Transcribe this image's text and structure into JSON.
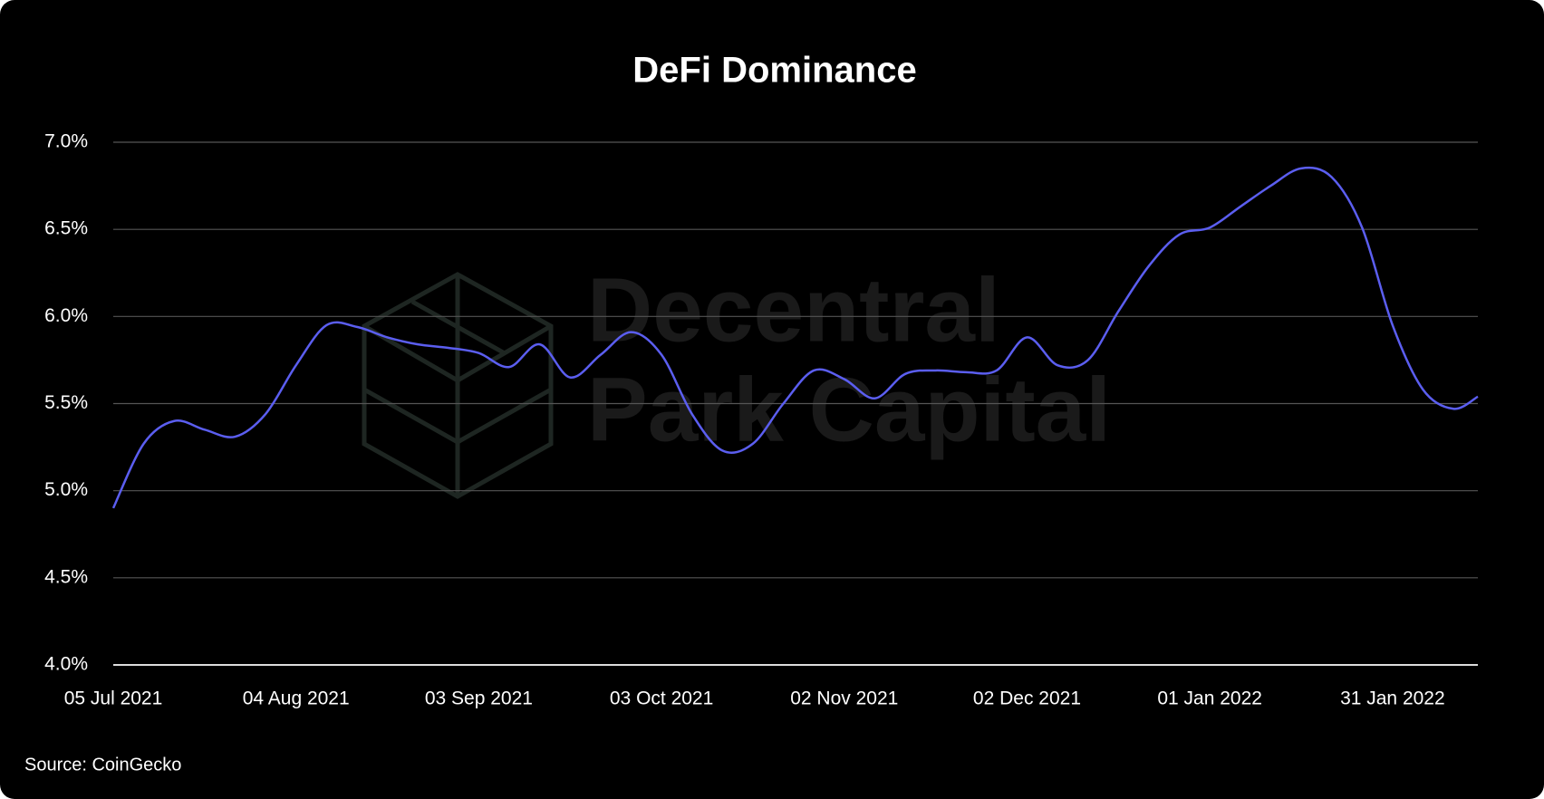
{
  "chart_data": {
    "type": "line",
    "title": "DeFi Dominance",
    "watermark": [
      "Decentral",
      "Park Capital"
    ],
    "source": "Source: CoinGecko",
    "x": [
      "2021-07-05",
      "2021-07-10",
      "2021-07-15",
      "2021-07-20",
      "2021-07-25",
      "2021-07-30",
      "2021-08-04",
      "2021-08-09",
      "2021-08-14",
      "2021-08-19",
      "2021-08-24",
      "2021-08-29",
      "2021-09-03",
      "2021-09-08",
      "2021-09-13",
      "2021-09-18",
      "2021-09-23",
      "2021-09-28",
      "2021-10-03",
      "2021-10-08",
      "2021-10-13",
      "2021-10-18",
      "2021-10-23",
      "2021-10-28",
      "2021-11-02",
      "2021-11-07",
      "2021-11-12",
      "2021-11-17",
      "2021-11-22",
      "2021-11-27",
      "2021-12-02",
      "2021-12-07",
      "2021-12-12",
      "2021-12-17",
      "2021-12-22",
      "2021-12-27",
      "2022-01-01",
      "2022-01-06",
      "2022-01-11",
      "2022-01-16",
      "2022-01-21",
      "2022-01-26",
      "2022-01-31",
      "2022-02-05",
      "2022-02-10",
      "2022-02-14"
    ],
    "series": [
      {
        "name": "DeFi Dominance",
        "color": "#5b5ef0",
        "values": [
          4.9,
          5.27,
          5.4,
          5.35,
          5.31,
          5.44,
          5.72,
          5.95,
          5.94,
          5.88,
          5.84,
          5.82,
          5.79,
          5.71,
          5.84,
          5.65,
          5.78,
          5.91,
          5.78,
          5.44,
          5.23,
          5.27,
          5.5,
          5.69,
          5.64,
          5.53,
          5.67,
          5.69,
          5.68,
          5.69,
          5.88,
          5.72,
          5.75,
          6.03,
          6.29,
          6.47,
          6.51,
          6.63,
          6.75,
          6.85,
          6.8,
          6.51,
          5.95,
          5.58,
          5.47,
          5.54
        ]
      }
    ],
    "xlim": [
      "2021-07-05",
      "2022-02-14"
    ],
    "xticks": [
      {
        "value": "2021-07-05",
        "label": "05 Jul 2021"
      },
      {
        "value": "2021-08-04",
        "label": "04 Aug 2021"
      },
      {
        "value": "2021-09-03",
        "label": "03 Sep 2021"
      },
      {
        "value": "2021-10-03",
        "label": "03 Oct 2021"
      },
      {
        "value": "2021-11-02",
        "label": "02 Nov 2021"
      },
      {
        "value": "2021-12-02",
        "label": "02 Dec 2021"
      },
      {
        "value": "2022-01-01",
        "label": "01 Jan 2022"
      },
      {
        "value": "2022-01-31",
        "label": "31 Jan 2022"
      }
    ],
    "ylim": [
      4.0,
      7.0
    ],
    "yticks": [
      {
        "value": 4.0,
        "label": "4.0%"
      },
      {
        "value": 4.5,
        "label": "4.5%"
      },
      {
        "value": 5.0,
        "label": "5.0%"
      },
      {
        "value": 5.5,
        "label": "5.5%"
      },
      {
        "value": 6.0,
        "label": "6.0%"
      },
      {
        "value": 6.5,
        "label": "6.5%"
      },
      {
        "value": 7.0,
        "label": "7.0%"
      }
    ],
    "grid": true
  }
}
